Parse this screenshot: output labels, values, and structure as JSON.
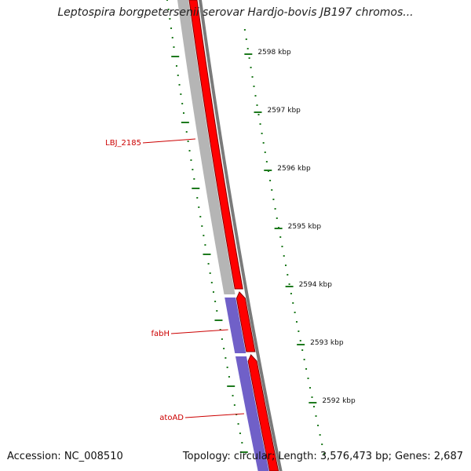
{
  "title": "Leptospira borgpetersenii serovar Hardjo-bovis JB197 chromos...",
  "footer": {
    "accession": "Accession: NC_008510",
    "topology": "Topology: circular; Length: 3,576,473 bp; Genes: 2,687"
  },
  "colors": {
    "forward_feature": "#ff0000",
    "reverse_feature": "#b5b5b5",
    "highlight_feature": "#7060c8",
    "backbone": "#7a7a7a",
    "tick": "#1e7a1e",
    "gene_label": "#cc0000"
  },
  "ticks": [
    {
      "label": "2598 kbp"
    },
    {
      "label": "2597 kbp"
    },
    {
      "label": "2596 kbp"
    },
    {
      "label": "2595 kbp"
    },
    {
      "label": "2594 kbp"
    },
    {
      "label": "2593 kbp"
    },
    {
      "label": "2592 kbp"
    }
  ],
  "gene_labels": [
    {
      "label": "LBJ_2185"
    },
    {
      "label": "fabH"
    },
    {
      "label": "atoAD"
    }
  ]
}
